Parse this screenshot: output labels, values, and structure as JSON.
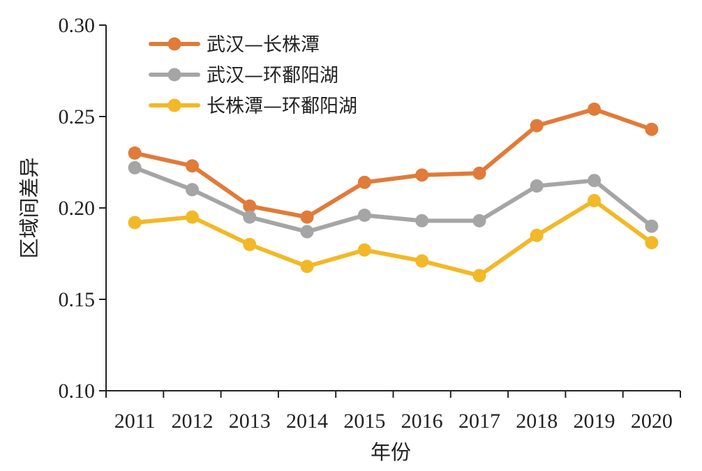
{
  "chart_data": {
    "type": "line",
    "title": "",
    "xlabel": "年份",
    "ylabel": "区域间差异",
    "categories": [
      "2011",
      "2012",
      "2013",
      "2014",
      "2015",
      "2016",
      "2017",
      "2018",
      "2019",
      "2020"
    ],
    "ylim": [
      0.1,
      0.3
    ],
    "yticks": [
      "0.10",
      "0.15",
      "0.20",
      "0.25",
      "0.30"
    ],
    "grid": false,
    "legend_position": "top-left",
    "series": [
      {
        "name": "武汉—长株潭",
        "color": "#e07b39",
        "values": [
          0.23,
          0.223,
          0.201,
          0.195,
          0.214,
          0.218,
          0.219,
          0.245,
          0.254,
          0.243
        ]
      },
      {
        "name": "武汉—环鄱阳湖",
        "color": "#a5a5a5",
        "values": [
          0.222,
          0.21,
          0.195,
          0.187,
          0.196,
          0.193,
          0.193,
          0.212,
          0.215,
          0.19
        ]
      },
      {
        "name": "长株潭—环鄱阳湖",
        "color": "#f2b827",
        "values": [
          0.192,
          0.195,
          0.18,
          0.168,
          0.177,
          0.171,
          0.163,
          0.185,
          0.204,
          0.181
        ]
      }
    ]
  }
}
